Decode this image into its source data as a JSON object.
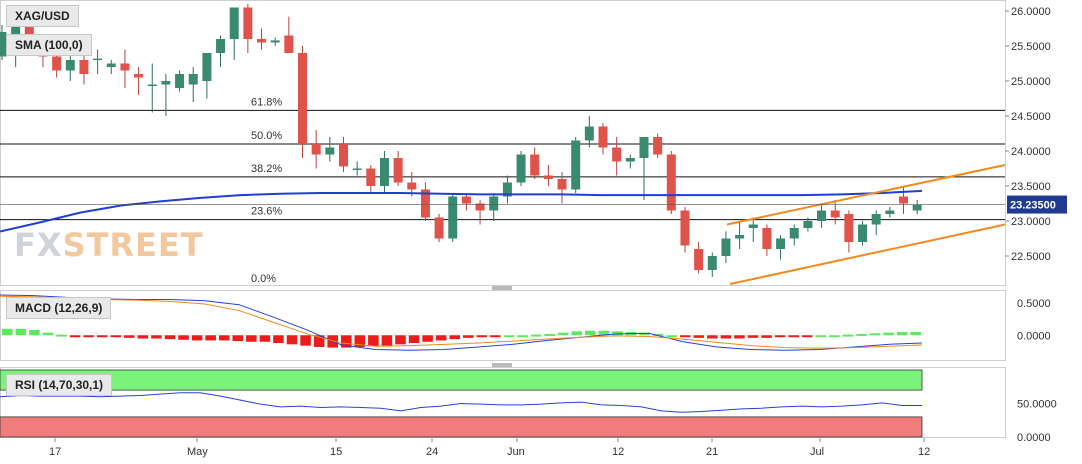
{
  "symbol": "XAG/USD",
  "logo_text": "FXSTREET",
  "current_price_label": "23.23500",
  "x_tick_labels": [
    "17",
    "May",
    "15",
    "24",
    "Jun",
    "12",
    "21",
    "Jul",
    "12"
  ],
  "colors": {
    "bull": "#3a8a6f",
    "bear": "#e0534b",
    "sma": "#1f3fd1",
    "channel": "#f28a1e",
    "macd_pos": "#5fe85f",
    "macd_neg": "#ea1c1c",
    "rsi_upper": "#7bf27b",
    "rsi_lower": "#f07c7c",
    "rsi_line": "#2743d6"
  },
  "chart_data": [
    {
      "type": "candlestick",
      "title": "XAG/USD",
      "y_ticks": [
        "26.0000",
        "25.5000",
        "25.0000",
        "24.5000",
        "24.0000",
        "23.5000",
        "23.0000",
        "22.5000"
      ],
      "ylim": [
        22.1,
        26.1
      ],
      "sma_label": "SMA (100,0)",
      "fib_levels": [
        {
          "label": "61.8%",
          "value": 24.58
        },
        {
          "label": "50.0%",
          "value": 24.1
        },
        {
          "label": "38.2%",
          "value": 23.63
        },
        {
          "label": "23.6%",
          "value": 23.02
        },
        {
          "label": "0.0%",
          "value": 22.1
        }
      ],
      "candles": [
        [
          25.35,
          25.8,
          25.3,
          25.7
        ],
        [
          25.6,
          25.9,
          25.2,
          25.8
        ],
        [
          25.85,
          26.0,
          25.4,
          25.55
        ],
        [
          25.55,
          25.65,
          25.2,
          25.35
        ],
        [
          25.35,
          25.6,
          25.05,
          25.15
        ],
        [
          25.15,
          25.4,
          25.0,
          25.3
        ],
        [
          25.3,
          25.45,
          24.95,
          25.1
        ],
        [
          25.3,
          25.45,
          25.1,
          25.32
        ],
        [
          25.2,
          25.3,
          25.1,
          25.25
        ],
        [
          25.25,
          25.45,
          24.9,
          25.15
        ],
        [
          25.1,
          25.2,
          24.8,
          25.05
        ],
        [
          24.95,
          25.25,
          24.55,
          24.95
        ],
        [
          24.95,
          25.1,
          24.5,
          25.0
        ],
        [
          24.9,
          25.15,
          24.85,
          25.1
        ],
        [
          24.95,
          25.2,
          24.7,
          25.1
        ],
        [
          25.0,
          25.4,
          24.75,
          25.4
        ],
        [
          25.4,
          25.65,
          25.2,
          25.6
        ],
        [
          25.6,
          26.05,
          25.3,
          26.05
        ],
        [
          26.05,
          26.1,
          25.4,
          25.6
        ],
        [
          25.6,
          25.75,
          25.45,
          25.55
        ],
        [
          25.55,
          25.62,
          25.5,
          25.58
        ],
        [
          25.65,
          25.92,
          25.4,
          25.4
        ],
        [
          25.4,
          25.5,
          23.9,
          24.1
        ],
        [
          24.1,
          24.3,
          23.75,
          23.95
        ],
        [
          23.95,
          24.2,
          23.85,
          24.05
        ],
        [
          24.1,
          24.2,
          23.7,
          23.78
        ],
        [
          23.75,
          23.85,
          23.65,
          23.75
        ],
        [
          23.75,
          23.8,
          23.4,
          23.5
        ],
        [
          23.5,
          24.0,
          23.4,
          23.9
        ],
        [
          23.9,
          24.0,
          23.5,
          23.55
        ],
        [
          23.55,
          23.7,
          23.35,
          23.45
        ],
        [
          23.45,
          23.55,
          23.0,
          23.05
        ],
        [
          23.05,
          23.1,
          22.7,
          22.75
        ],
        [
          22.75,
          23.4,
          22.7,
          23.35
        ],
        [
          23.35,
          23.4,
          23.15,
          23.25
        ],
        [
          23.25,
          23.3,
          22.95,
          23.15
        ],
        [
          23.15,
          23.4,
          23.0,
          23.35
        ],
        [
          23.35,
          23.65,
          23.25,
          23.55
        ],
        [
          23.55,
          24.0,
          23.5,
          23.95
        ],
        [
          23.95,
          24.05,
          23.6,
          23.65
        ],
        [
          23.65,
          23.8,
          23.5,
          23.6
        ],
        [
          23.6,
          23.7,
          23.25,
          23.45
        ],
        [
          23.45,
          24.2,
          23.4,
          24.15
        ],
        [
          24.15,
          24.5,
          24.05,
          24.35
        ],
        [
          24.35,
          24.4,
          23.95,
          24.05
        ],
        [
          24.05,
          24.2,
          23.65,
          23.85
        ],
        [
          23.85,
          23.95,
          23.75,
          23.9
        ],
        [
          23.9,
          24.2,
          23.3,
          24.2
        ],
        [
          24.2,
          24.25,
          23.9,
          23.95
        ],
        [
          23.95,
          24.0,
          23.1,
          23.15
        ],
        [
          23.15,
          23.2,
          22.55,
          22.65
        ],
        [
          22.6,
          22.7,
          22.25,
          22.3
        ],
        [
          22.3,
          22.55,
          22.2,
          22.5
        ],
        [
          22.5,
          22.85,
          22.4,
          22.75
        ],
        [
          22.75,
          23.0,
          22.6,
          22.8
        ],
        [
          22.9,
          23.05,
          22.7,
          22.95
        ],
        [
          22.9,
          22.95,
          22.5,
          22.6
        ],
        [
          22.6,
          22.8,
          22.45,
          22.75
        ],
        [
          22.75,
          22.95,
          22.65,
          22.9
        ],
        [
          22.9,
          23.05,
          22.85,
          23.0
        ],
        [
          23.0,
          23.25,
          22.9,
          23.15
        ],
        [
          23.15,
          23.3,
          22.95,
          23.05
        ],
        [
          23.1,
          23.15,
          22.55,
          22.7
        ],
        [
          22.7,
          23.0,
          22.65,
          22.95
        ],
        [
          22.95,
          23.15,
          22.8,
          23.1
        ],
        [
          23.1,
          23.2,
          23.05,
          23.15
        ],
        [
          23.35,
          23.5,
          23.1,
          23.25
        ],
        [
          23.15,
          23.3,
          23.1,
          23.23
        ]
      ],
      "sma_path": [
        22.85,
        22.98,
        23.12,
        23.22,
        23.28,
        23.33,
        23.37,
        23.39,
        23.4,
        23.4,
        23.4,
        23.39,
        23.38,
        23.38,
        23.38,
        23.37,
        23.37,
        23.37,
        23.37,
        23.37,
        23.37,
        23.38,
        23.4,
        23.43
      ],
      "channel_upper": [
        [
          23.0,
          22.95
        ],
        [
          24.2,
          23.8
        ]
      ],
      "channel_lower": [
        [
          22.2,
          22.1
        ],
        [
          23.1,
          22.95
        ]
      ]
    },
    {
      "type": "histogram+line",
      "title": "MACD (12,26,9)",
      "y_ticks": [
        "0.5000",
        "0.0000"
      ],
      "ylim": [
        -0.35,
        0.65
      ],
      "histogram": [
        0.1,
        0.1,
        0.08,
        0.04,
        0.01,
        -0.01,
        -0.02,
        -0.02,
        -0.03,
        -0.04,
        -0.05,
        -0.05,
        -0.06,
        -0.07,
        -0.08,
        -0.08,
        -0.08,
        -0.09,
        -0.1,
        -0.1,
        -0.12,
        -0.14,
        -0.16,
        -0.18,
        -0.19,
        -0.19,
        -0.18,
        -0.17,
        -0.16,
        -0.14,
        -0.12,
        -0.1,
        -0.08,
        -0.06,
        -0.04,
        -0.02,
        -0.01,
        0.0,
        0.0,
        0.01,
        0.02,
        0.04,
        0.06,
        0.07,
        0.07,
        0.06,
        0.05,
        0.04,
        0.02,
        0.0,
        -0.02,
        -0.04,
        -0.05,
        -0.05,
        -0.05,
        -0.04,
        -0.04,
        -0.03,
        -0.02,
        -0.01,
        0.0,
        0.0,
        0.01,
        0.02,
        0.03,
        0.04,
        0.05,
        0.05
      ],
      "macd_line": [
        0.62,
        0.61,
        0.58,
        0.56,
        0.55,
        0.55,
        0.53,
        0.47,
        0.28,
        0.08,
        -0.15,
        -0.22,
        -0.23,
        -0.22,
        -0.18,
        -0.14,
        -0.08,
        -0.03,
        0.02,
        0.03,
        -0.1,
        -0.18,
        -0.22,
        -0.23,
        -0.22,
        -0.18,
        -0.14,
        -0.12
      ],
      "signal_line": [
        0.6,
        0.59,
        0.57,
        0.55,
        0.54,
        0.52,
        0.48,
        0.38,
        0.2,
        0.02,
        -0.12,
        -0.17,
        -0.16,
        -0.14,
        -0.12,
        -0.09,
        -0.06,
        -0.03,
        -0.01,
        -0.02,
        -0.06,
        -0.11,
        -0.16,
        -0.19,
        -0.2,
        -0.19,
        -0.17,
        -0.15
      ]
    },
    {
      "type": "line",
      "title": "RSI (14,70,30,1)",
      "y_ticks": [
        "50.0000",
        "0.0000"
      ],
      "ylim": [
        0,
        100
      ],
      "upper_band": 70,
      "lower_band": 30,
      "rsi_values": [
        60,
        62,
        61,
        61,
        61,
        60,
        61,
        62,
        64,
        66,
        66,
        61,
        55,
        49,
        45,
        46,
        44,
        45,
        44,
        43,
        39,
        44,
        46,
        50,
        49,
        48,
        48,
        49,
        51,
        52,
        48,
        47,
        45,
        39,
        37,
        38,
        40,
        42,
        43,
        45,
        46,
        45,
        46,
        48,
        51,
        47,
        47
      ]
    }
  ]
}
